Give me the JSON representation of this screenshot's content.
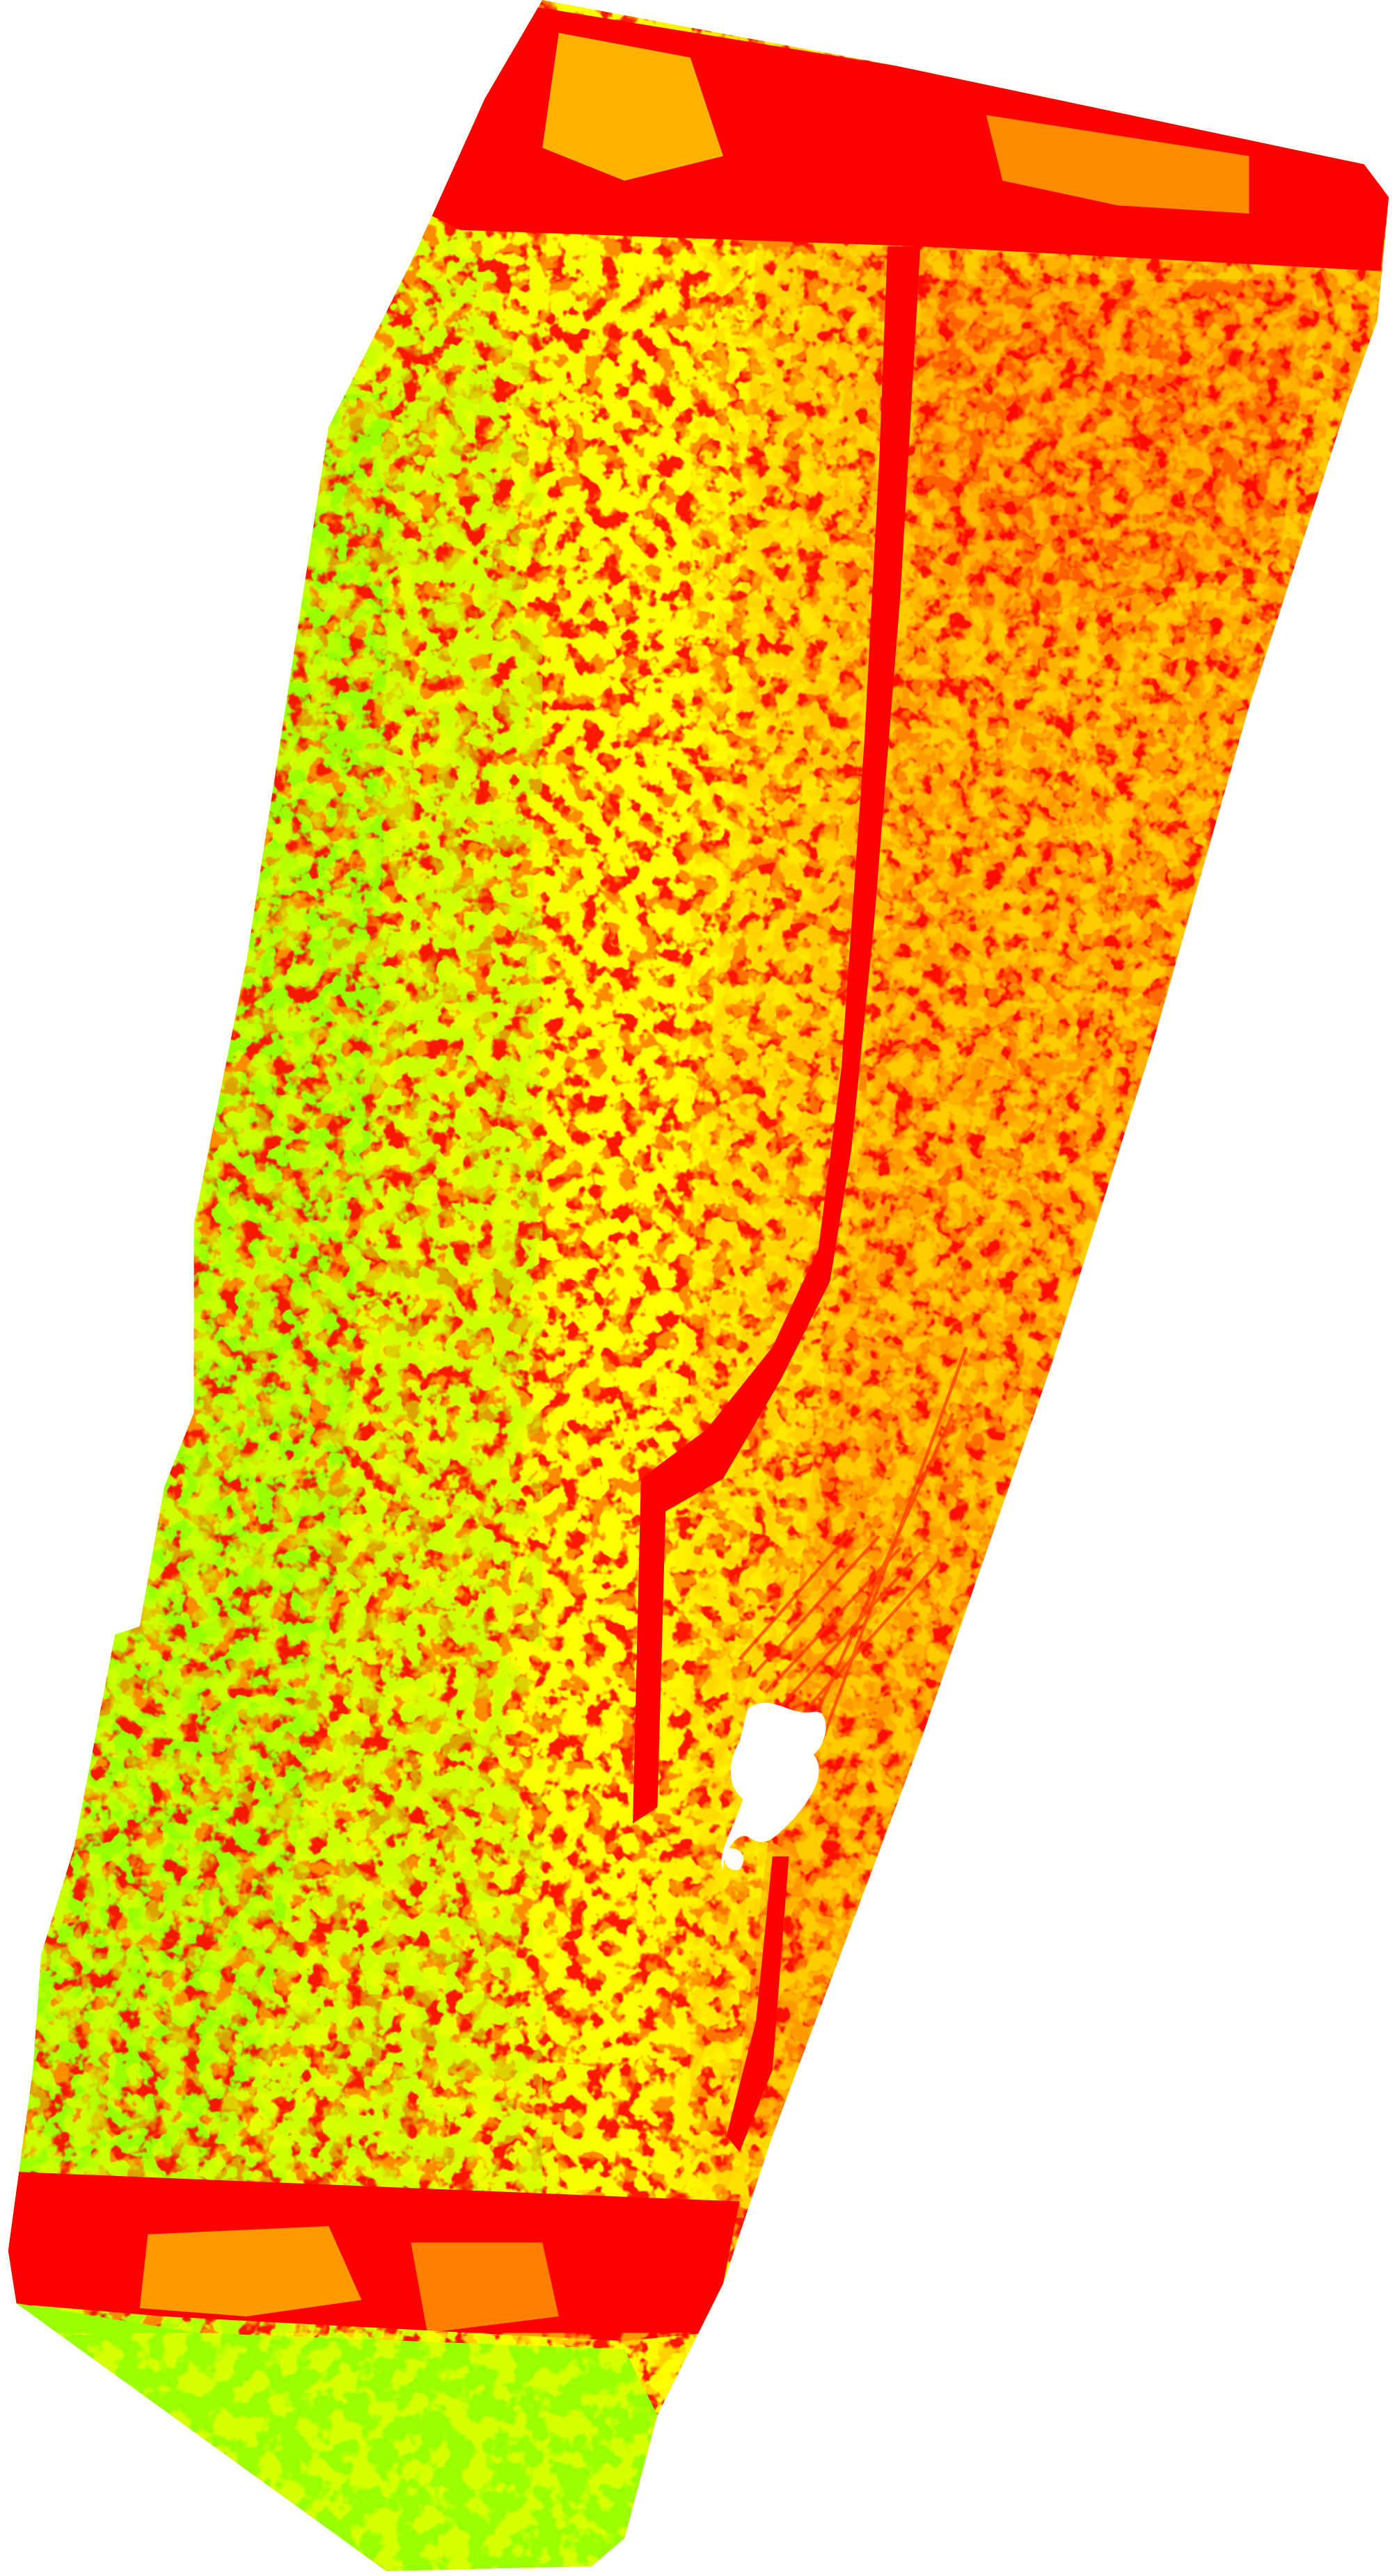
{
  "map": {
    "type": "classified-raster",
    "background_color": "#ffffff",
    "palette": {
      "high": "#99ff00",
      "mid_high": "#ccff00",
      "mid": "#ffff00",
      "mid_low": "#ffcc00",
      "low_mid": "#ff9900",
      "low": "#ff0000"
    },
    "legend": []
  }
}
